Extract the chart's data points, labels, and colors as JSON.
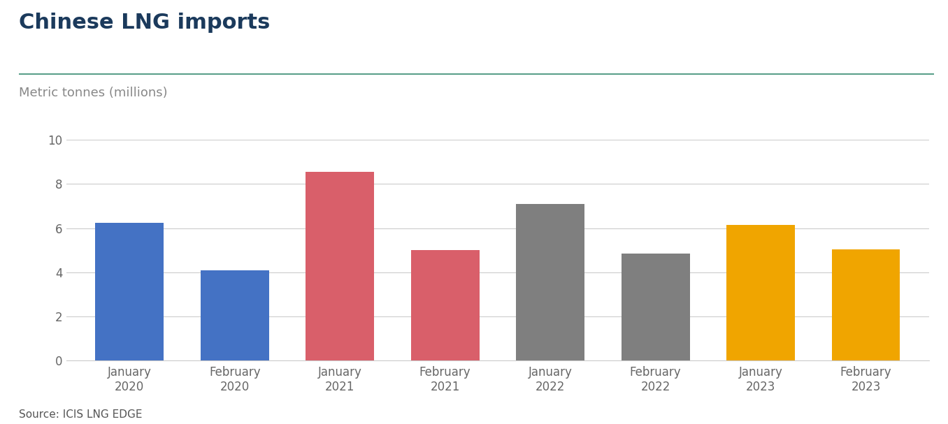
{
  "title": "Chinese LNG imports",
  "ylabel": "Metric tonnes (millions)",
  "source": "Source: ICIS LNG EDGE",
  "categories": [
    "January\n2020",
    "February\n2020",
    "January\n2021",
    "February\n2021",
    "January\n2022",
    "February\n2022",
    "January\n2023",
    "February\n2023"
  ],
  "values": [
    6.25,
    4.1,
    8.55,
    5.0,
    7.1,
    4.85,
    6.15,
    5.05
  ],
  "bar_colors": [
    "#4472C4",
    "#4472C4",
    "#D95F6A",
    "#D95F6A",
    "#7F7F7F",
    "#7F7F7F",
    "#F0A500",
    "#F0A500"
  ],
  "ylim": [
    0,
    10
  ],
  "yticks": [
    0,
    2,
    4,
    6,
    8,
    10
  ],
  "title_color": "#1B3A5C",
  "ylabel_color": "#888888",
  "source_color": "#555555",
  "title_fontsize": 22,
  "ylabel_fontsize": 13,
  "tick_fontsize": 12,
  "source_fontsize": 11,
  "background_color": "#FFFFFF",
  "grid_color": "#CCCCCC",
  "separator_color": "#5BA08A",
  "bar_width": 0.65
}
